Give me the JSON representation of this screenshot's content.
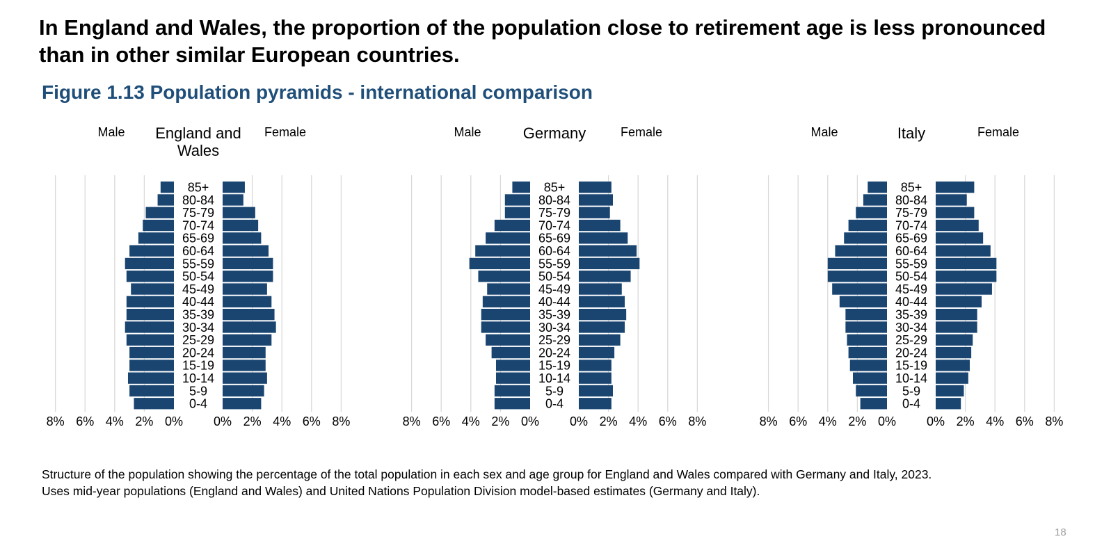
{
  "headline": "In England and Wales, the proportion of the population close to retirement age is less pronounced than in other similar European countries.",
  "figure_title": "Figure 1.13 Population pyramids - international comparison",
  "caption_line1": "Structure of the population showing the percentage of the total population in each sex and age group for England and Wales compared with Germany and Italy, 2023.",
  "caption_line2": "Uses mid-year populations (England and Wales) and United Nations Population Division model-based estimates (Germany and Italy).",
  "page_number": "18",
  "colors": {
    "bar": "#1a4571",
    "grid": "#d9d9d9",
    "title": "#1f4e79"
  },
  "chart_data": [
    {
      "type": "bar",
      "orientation": "horizontal-pyramid",
      "title": "England and Wales",
      "left_label": "Male",
      "right_label": "Female",
      "categories": [
        "0-4",
        "5-9",
        "10-14",
        "15-19",
        "20-24",
        "25-29",
        "30-34",
        "35-39",
        "40-44",
        "45-49",
        "50-54",
        "55-59",
        "60-64",
        "65-69",
        "70-74",
        "75-79",
        "80-84",
        "85+"
      ],
      "series": [
        {
          "name": "Male",
          "values": [
            2.7,
            3.0,
            3.1,
            3.0,
            3.0,
            3.2,
            3.3,
            3.2,
            3.2,
            2.9,
            3.2,
            3.3,
            3.0,
            2.4,
            2.1,
            1.9,
            1.1,
            0.9
          ]
        },
        {
          "name": "Female",
          "values": [
            2.6,
            2.8,
            3.0,
            2.9,
            2.9,
            3.3,
            3.6,
            3.5,
            3.3,
            3.0,
            3.4,
            3.4,
            3.1,
            2.6,
            2.4,
            2.2,
            1.4,
            1.5
          ]
        }
      ],
      "xlim": [
        0,
        8
      ],
      "ticks": [
        "0%",
        "2%",
        "4%",
        "6%",
        "8%"
      ],
      "grid": true
    },
    {
      "type": "bar",
      "orientation": "horizontal-pyramid",
      "title": "Germany",
      "left_label": "Male",
      "right_label": "Female",
      "categories": [
        "0-4",
        "5-9",
        "10-14",
        "15-19",
        "20-24",
        "25-29",
        "30-34",
        "35-39",
        "40-44",
        "45-49",
        "50-54",
        "55-59",
        "60-64",
        "65-69",
        "70-74",
        "75-79",
        "80-84",
        "85+"
      ],
      "series": [
        {
          "name": "Male",
          "values": [
            2.4,
            2.4,
            2.3,
            2.3,
            2.6,
            3.0,
            3.3,
            3.3,
            3.2,
            2.9,
            3.5,
            4.1,
            3.7,
            3.0,
            2.4,
            1.7,
            1.7,
            1.2
          ]
        },
        {
          "name": "Female",
          "values": [
            2.2,
            2.3,
            2.2,
            2.2,
            2.4,
            2.8,
            3.1,
            3.2,
            3.1,
            2.9,
            3.5,
            4.1,
            3.9,
            3.3,
            2.8,
            2.1,
            2.3,
            2.2
          ]
        }
      ],
      "xlim": [
        0,
        8
      ],
      "ticks": [
        "0%",
        "2%",
        "4%",
        "6%",
        "8%"
      ],
      "grid": true
    },
    {
      "type": "bar",
      "orientation": "horizontal-pyramid",
      "title": "Italy",
      "left_label": "Male",
      "right_label": "Female",
      "categories": [
        "0-4",
        "5-9",
        "10-14",
        "15-19",
        "20-24",
        "25-29",
        "30-34",
        "35-39",
        "40-44",
        "45-49",
        "50-54",
        "55-59",
        "60-64",
        "65-69",
        "70-74",
        "75-79",
        "80-84",
        "85+"
      ],
      "series": [
        {
          "name": "Male",
          "values": [
            1.8,
            2.1,
            2.3,
            2.5,
            2.6,
            2.7,
            2.8,
            2.8,
            3.2,
            3.7,
            4.0,
            4.0,
            3.5,
            2.9,
            2.6,
            2.1,
            1.6,
            1.3
          ]
        },
        {
          "name": "Female",
          "values": [
            1.7,
            1.9,
            2.2,
            2.3,
            2.4,
            2.5,
            2.8,
            2.8,
            3.1,
            3.8,
            4.1,
            4.1,
            3.7,
            3.2,
            2.9,
            2.6,
            2.1,
            2.6
          ]
        }
      ],
      "xlim": [
        0,
        8
      ],
      "ticks": [
        "0%",
        "2%",
        "4%",
        "6%",
        "8%"
      ],
      "grid": true
    }
  ]
}
